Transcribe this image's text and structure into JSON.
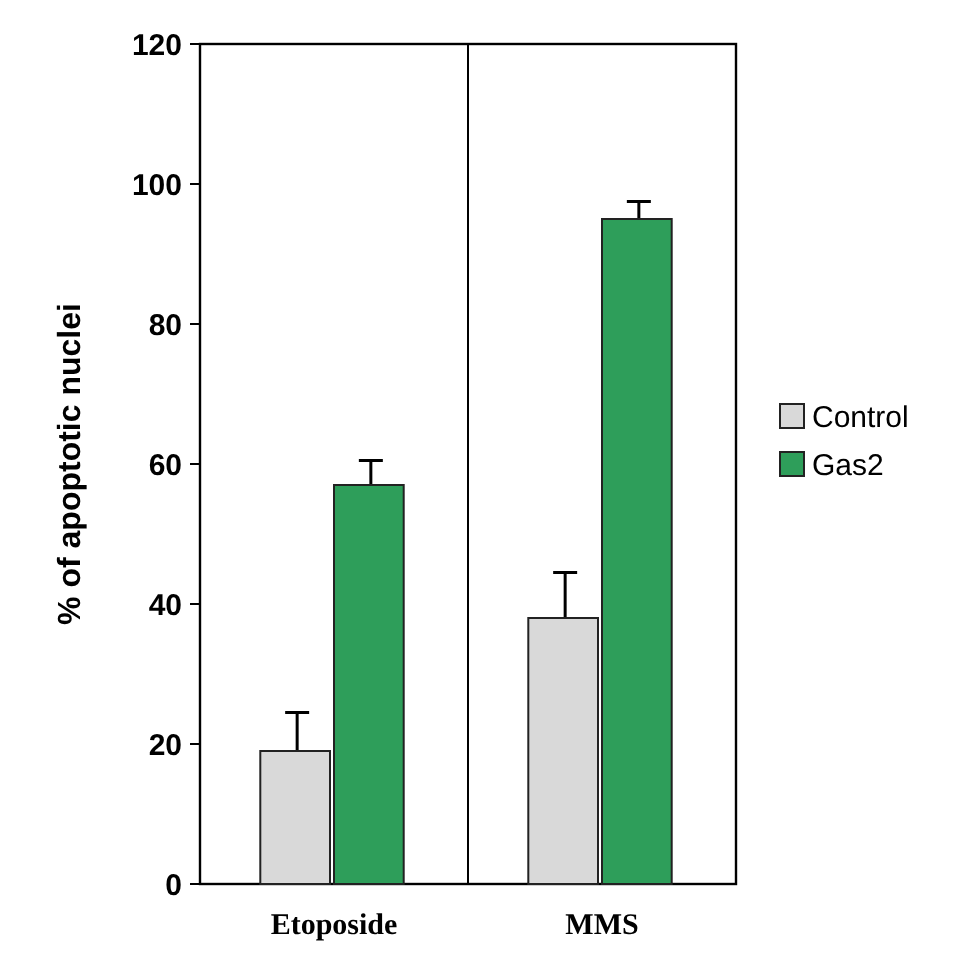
{
  "chart_data": {
    "type": "bar",
    "ylabel": "% of apoptotic nuclei",
    "categories": [
      "Etoposide",
      "MMS"
    ],
    "series": [
      {
        "name": "Control",
        "color": "#d9d9d9",
        "values": [
          19,
          38
        ],
        "errors": [
          5.5,
          6.5
        ]
      },
      {
        "name": "Gas2",
        "color": "#2e9e5a",
        "values": [
          57,
          95
        ],
        "errors": [
          3.5,
          2.5
        ]
      }
    ],
    "ylim": [
      0,
      120
    ],
    "yticks": [
      0,
      20,
      40,
      60,
      80,
      100,
      120
    ],
    "grid": "x",
    "legend": "right"
  }
}
